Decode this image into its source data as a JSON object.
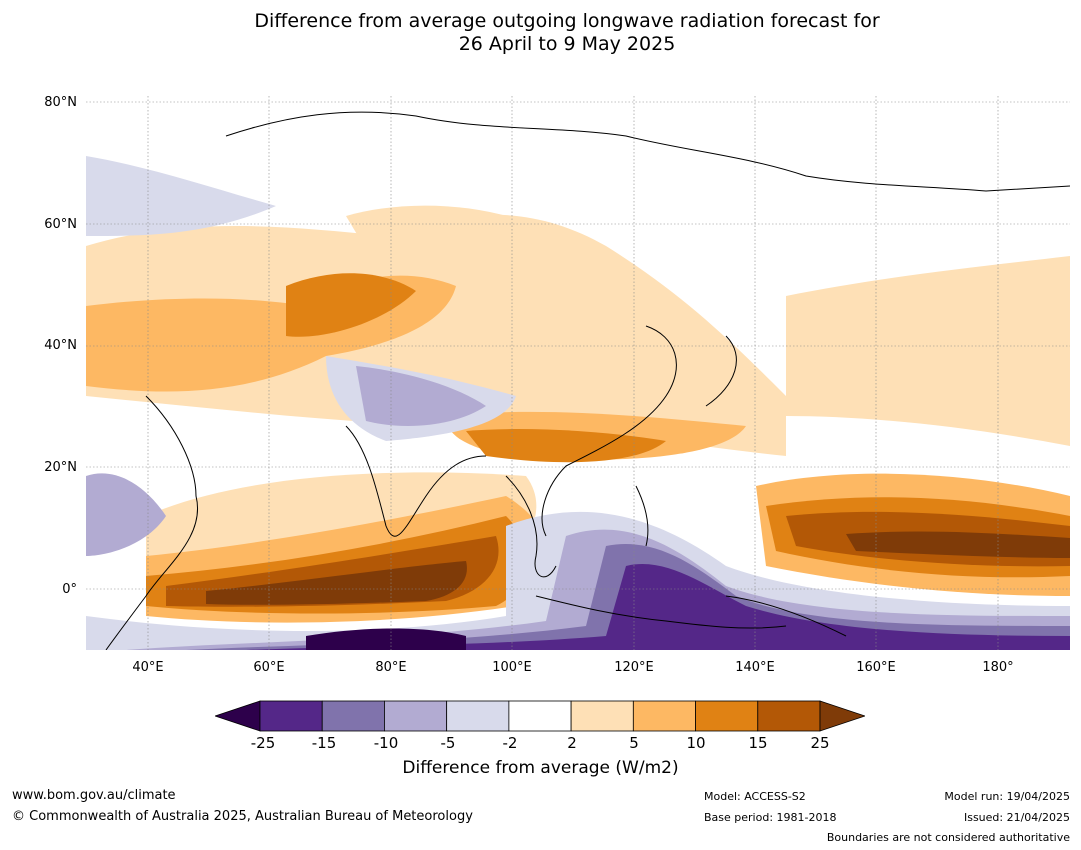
{
  "title": {
    "line1": "Difference from average outgoing longwave radiation forecast for",
    "line2": "26 April to 9 May 2025"
  },
  "axes": {
    "lat_labels": [
      "80°N",
      "60°N",
      "40°N",
      "20°N",
      "0°"
    ],
    "lon_labels": [
      "40°E",
      "60°E",
      "80°E",
      "100°E",
      "120°E",
      "140°E",
      "160°E",
      "180°"
    ]
  },
  "colorbar": {
    "ticks": [
      "-25",
      "-15",
      "-10",
      "-5",
      "-2",
      "2",
      "5",
      "10",
      "15",
      "25"
    ],
    "label": "Difference from average (W/m2)",
    "colors": {
      "below_min": "#2d004b",
      "bins": [
        "#542788",
        "#8073ac",
        "#b2abd2",
        "#d8daeb",
        "#ffffff",
        "#fee0b6",
        "#fdb863",
        "#e08214",
        "#b35806"
      ],
      "above_max": "#7f3b08"
    }
  },
  "footer": {
    "website": "www.bom.gov.au/climate",
    "copyright": "© Commonwealth of Australia 2025, Australian Bureau of Meteorology",
    "model": "Model: ACCESS-S2",
    "base_period": "Base period: 1981-2018",
    "model_run": "Model run: 19/04/2025",
    "issued": "Issued: 21/04/2025",
    "disclaimer": "Boundaries are not considered authoritative"
  }
}
